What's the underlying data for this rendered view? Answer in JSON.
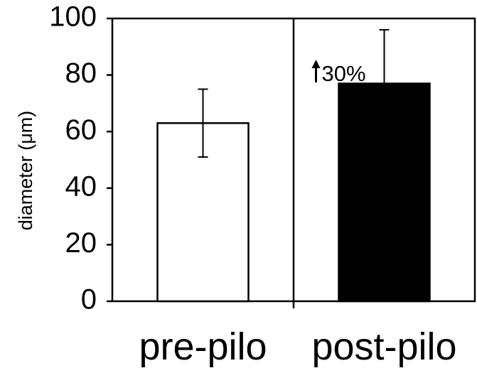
{
  "chart_data": {
    "type": "bar",
    "title": "",
    "xlabel": "",
    "ylabel": "diameter (μm)",
    "ylim": [
      0,
      100
    ],
    "yticks": [
      "0",
      "20",
      "40",
      "60",
      "80",
      "100"
    ],
    "categories": [
      "pre-pilo",
      "post-pilo"
    ],
    "values": [
      63,
      77
    ],
    "error_bars": [
      12,
      19
    ],
    "bar_colors": [
      "#ffffff",
      "#000000"
    ],
    "divider_between_categories": true,
    "grid": false,
    "annotations": [
      {
        "category": "post-pilo",
        "text": "30%",
        "arrow": "up"
      }
    ]
  }
}
